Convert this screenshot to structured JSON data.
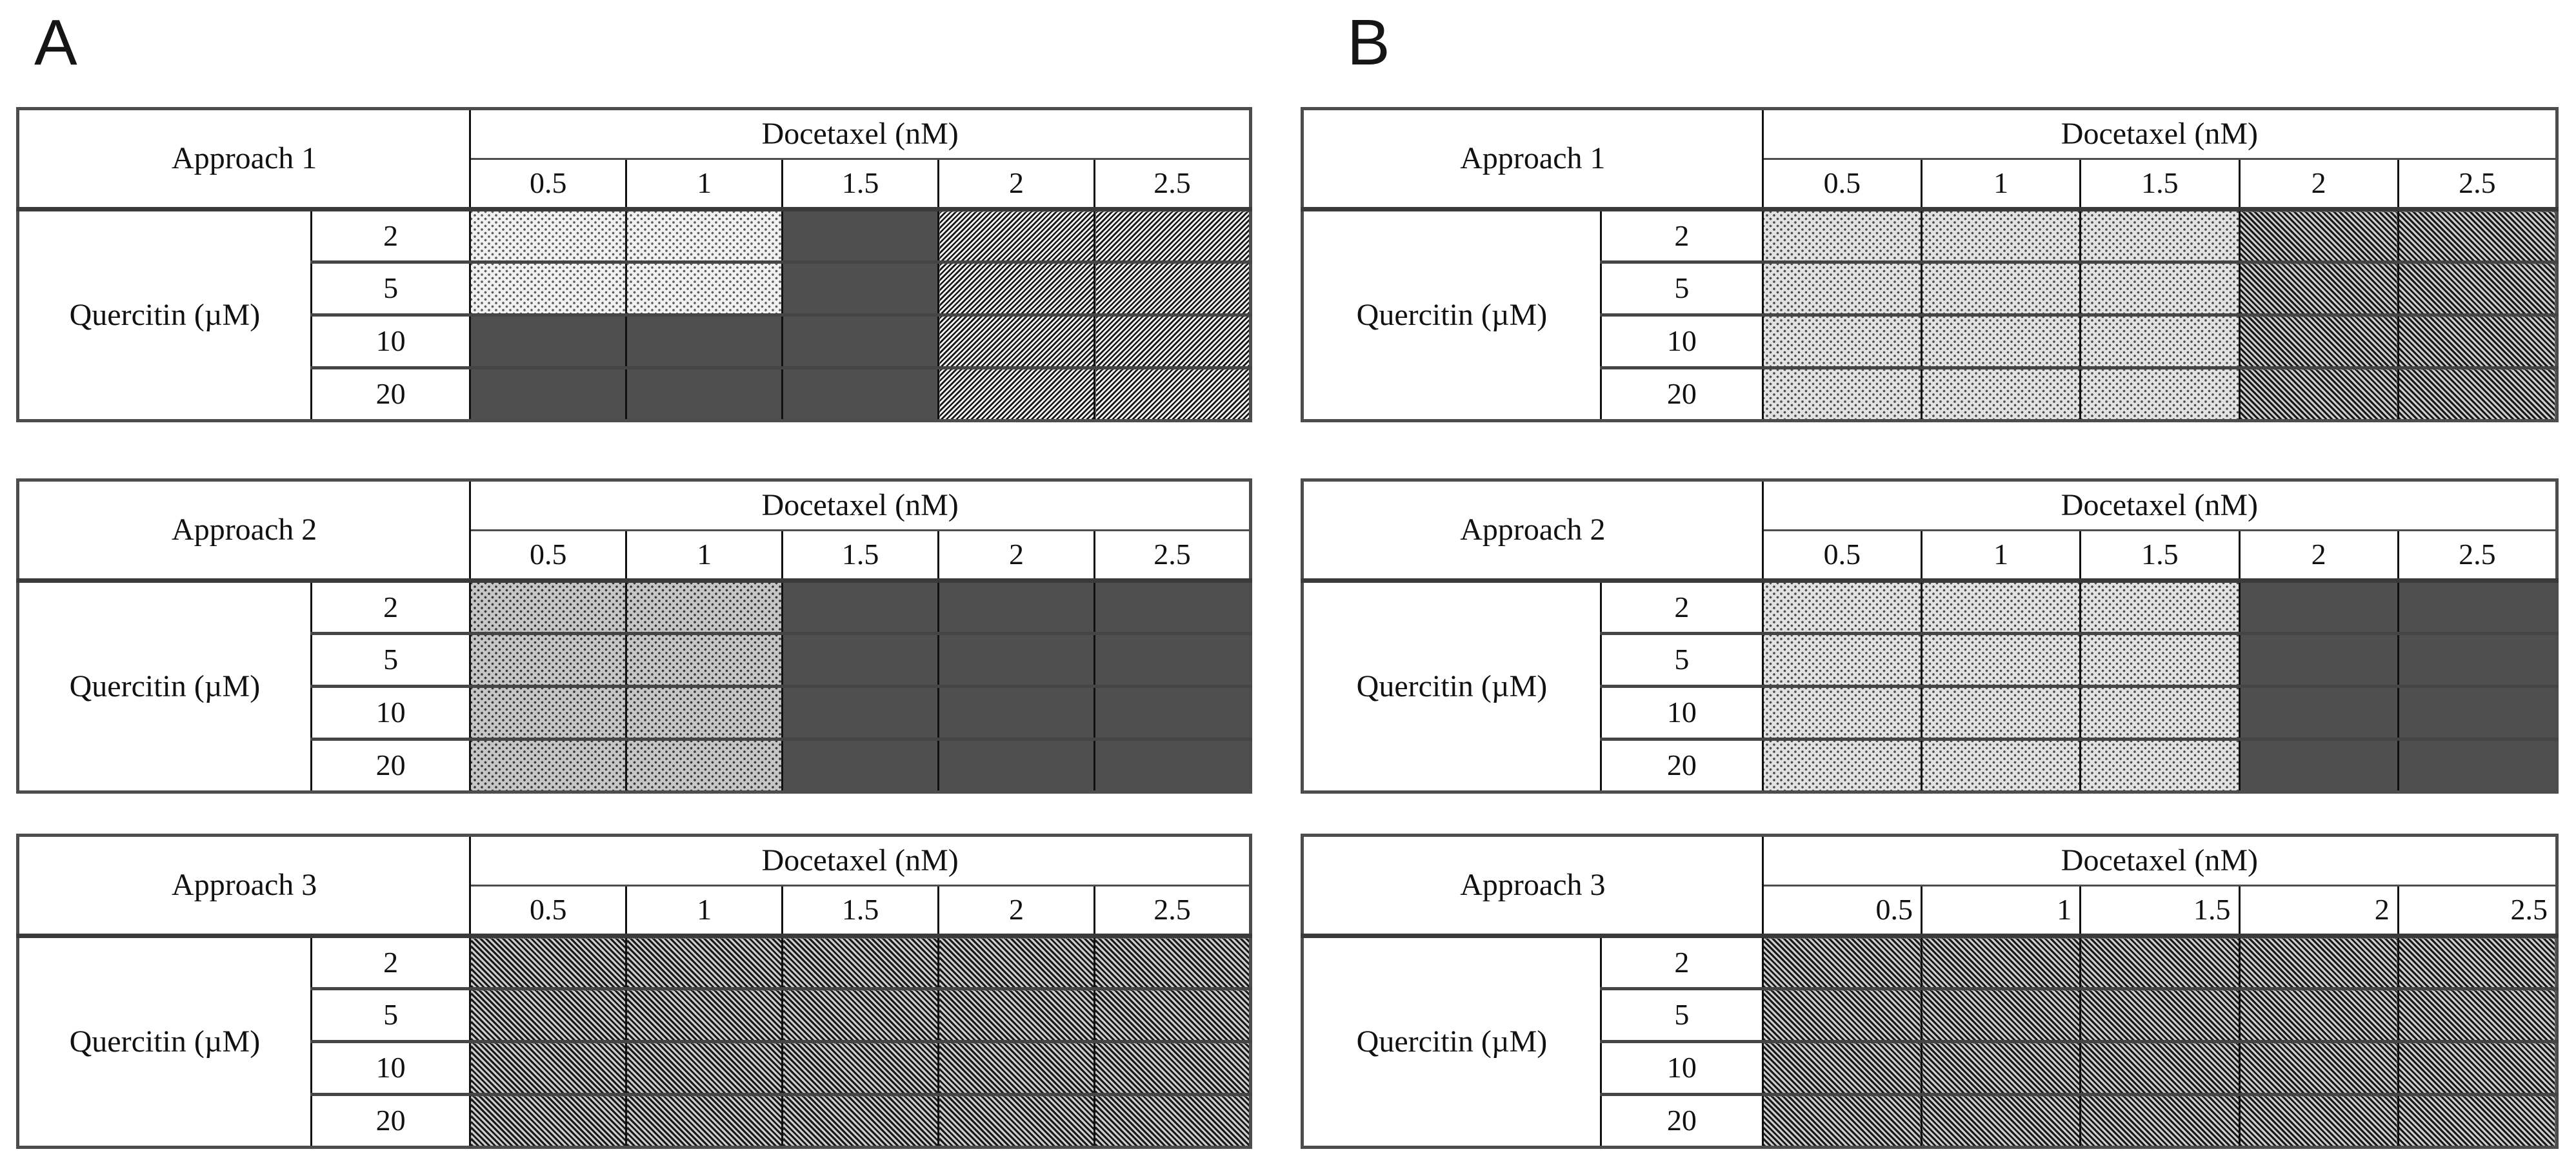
{
  "panel_labels": [
    "A",
    "B"
  ],
  "shared": {
    "drug_axis_label": "Docetaxel (nM)",
    "quercitin_axis_label": "Quercitin (µM)"
  },
  "patterns": {
    "dots_lightest": {
      "style": "fine dots",
      "background": "#f1f1f1",
      "dot": "#5d5d5d"
    },
    "dots_light": {
      "style": "fine dots",
      "background": "#e2e2e2",
      "dot": "#4c4c4c"
    },
    "dots_gray": {
      "style": "fine dots",
      "background": "#c6c6c6",
      "dot": "#373737"
    },
    "solid_dark": {
      "style": "solid fill",
      "fill": "#4f4f4f"
    },
    "hatch_up": {
      "style": "diagonal stripes rising right (/)",
      "dark": "#151515",
      "light": "#f3f3f3"
    },
    "hatch_down": {
      "style": "diagonal stripes falling right (\\)",
      "dark": "#181818",
      "light": "#cdcdcd"
    }
  },
  "chart_data": [
    {
      "panel": "A",
      "type": "heatmap",
      "title": "Approach 1",
      "x_label": "Docetaxel (nM)",
      "x": [
        0.5,
        1,
        1.5,
        2,
        2.5
      ],
      "y_label": "Quercitin (µM)",
      "y": [
        2,
        5,
        10,
        20
      ],
      "x_tick_align": "center",
      "cells": [
        [
          "dots_lightest",
          "dots_lightest",
          "solid_dark",
          "hatch_up",
          "hatch_up"
        ],
        [
          "dots_lightest",
          "dots_lightest",
          "solid_dark",
          "hatch_up",
          "hatch_up"
        ],
        [
          "solid_dark",
          "solid_dark",
          "solid_dark",
          "hatch_up",
          "hatch_up"
        ],
        [
          "solid_dark",
          "solid_dark",
          "solid_dark",
          "hatch_up",
          "hatch_up"
        ]
      ]
    },
    {
      "panel": "A",
      "type": "heatmap",
      "title": "Approach 2",
      "x_label": "Docetaxel (nM)",
      "x": [
        0.5,
        1,
        1.5,
        2,
        2.5
      ],
      "y_label": "Quercitin (µM)",
      "y": [
        2,
        5,
        10,
        20
      ],
      "x_tick_align": "center",
      "cells": [
        [
          "dots_gray",
          "dots_gray",
          "solid_dark",
          "solid_dark",
          "solid_dark"
        ],
        [
          "dots_gray",
          "dots_gray",
          "solid_dark",
          "solid_dark",
          "solid_dark"
        ],
        [
          "dots_gray",
          "dots_gray",
          "solid_dark",
          "solid_dark",
          "solid_dark"
        ],
        [
          "dots_gray",
          "dots_gray",
          "solid_dark",
          "solid_dark",
          "solid_dark"
        ]
      ]
    },
    {
      "panel": "A",
      "type": "heatmap",
      "title": "Approach 3",
      "x_label": "Docetaxel (nM)",
      "x": [
        0.5,
        1,
        1.5,
        2,
        2.5
      ],
      "y_label": "Quercitin (µM)",
      "y": [
        2,
        5,
        10,
        20
      ],
      "x_tick_align": "center",
      "cells": [
        [
          "hatch_down",
          "hatch_down",
          "hatch_down",
          "hatch_down",
          "hatch_down"
        ],
        [
          "hatch_down",
          "hatch_down",
          "hatch_down",
          "hatch_down",
          "hatch_down"
        ],
        [
          "hatch_down",
          "hatch_down",
          "hatch_down",
          "hatch_down",
          "hatch_down"
        ],
        [
          "hatch_down",
          "hatch_down",
          "hatch_down",
          "hatch_down",
          "hatch_down"
        ]
      ]
    },
    {
      "panel": "B",
      "type": "heatmap",
      "title": "Approach 1",
      "x_label": "Docetaxel (nM)",
      "x": [
        0.5,
        1,
        1.5,
        2,
        2.5
      ],
      "y_label": "Quercitin (µM)",
      "y": [
        2,
        5,
        10,
        20
      ],
      "x_tick_align": "center",
      "cells": [
        [
          "dots_light",
          "dots_light",
          "dots_light",
          "hatch_down",
          "hatch_down"
        ],
        [
          "dots_light",
          "dots_light",
          "dots_light",
          "hatch_down",
          "hatch_down"
        ],
        [
          "dots_light",
          "dots_light",
          "dots_light",
          "hatch_down",
          "hatch_down"
        ],
        [
          "dots_light",
          "dots_light",
          "dots_light",
          "hatch_down",
          "hatch_down"
        ]
      ]
    },
    {
      "panel": "B",
      "type": "heatmap",
      "title": "Approach 2",
      "x_label": "Docetaxel (nM)",
      "x": [
        0.5,
        1,
        1.5,
        2,
        2.5
      ],
      "y_label": "Quercitin (µM)",
      "y": [
        2,
        5,
        10,
        20
      ],
      "x_tick_align": "center",
      "cells": [
        [
          "dots_light",
          "dots_light",
          "dots_light",
          "solid_dark",
          "solid_dark"
        ],
        [
          "dots_light",
          "dots_light",
          "dots_light",
          "solid_dark",
          "solid_dark"
        ],
        [
          "dots_light",
          "dots_light",
          "dots_light",
          "solid_dark",
          "solid_dark"
        ],
        [
          "dots_light",
          "dots_light",
          "dots_light",
          "solid_dark",
          "solid_dark"
        ]
      ]
    },
    {
      "panel": "B",
      "type": "heatmap",
      "title": "Approach 3",
      "x_label": "Docetaxel (nM)",
      "x": [
        0.5,
        1,
        1.5,
        2,
        2.5
      ],
      "y_label": "Quercitin (µM)",
      "y": [
        2,
        5,
        10,
        20
      ],
      "x_tick_align": "right",
      "cells": [
        [
          "hatch_down",
          "hatch_down",
          "hatch_down",
          "hatch_down",
          "hatch_down"
        ],
        [
          "hatch_down",
          "hatch_down",
          "hatch_down",
          "hatch_down",
          "hatch_down"
        ],
        [
          "hatch_down",
          "hatch_down",
          "hatch_down",
          "hatch_down",
          "hatch_down"
        ],
        [
          "hatch_down",
          "hatch_down",
          "hatch_down",
          "hatch_down",
          "hatch_down"
        ]
      ]
    }
  ]
}
